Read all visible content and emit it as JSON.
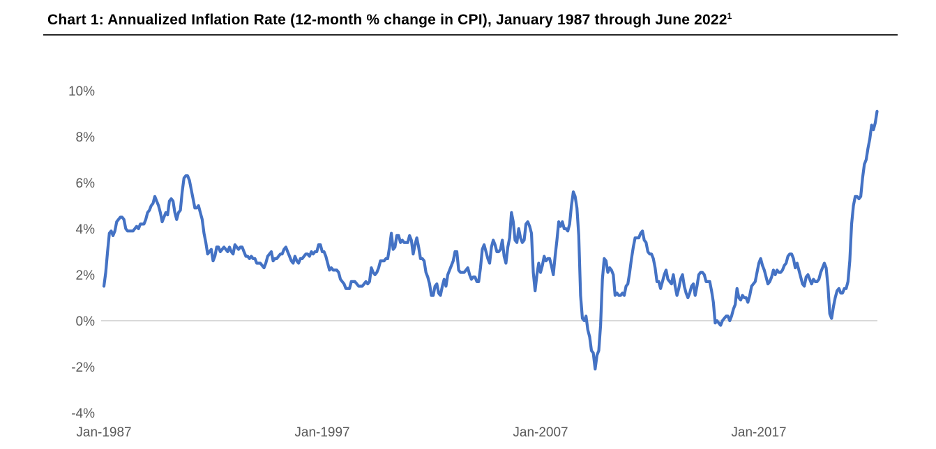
{
  "page": {
    "title": "Chart 1: Annualized Inflation Rate (12-month % change in CPI), January 1987 through June 2022",
    "title_superscript": "1"
  },
  "chart_data": {
    "type": "line",
    "title": "Chart 1: Annualized Inflation Rate (12-month % change in CPI), January 1987 through June 2022",
    "footnote_marker": "1",
    "xlabel": "",
    "ylabel": "",
    "x_start": "Jan-1987",
    "x_end": "Jun-2022",
    "frequency": "monthly",
    "ylim": [
      -4,
      10
    ],
    "grid": "horizontal gridline at 0% only",
    "legend": "none",
    "line_color": "#4472C4",
    "axis_label_color": "#595959",
    "gridline_color": "#D9D9D9",
    "y_ticks": [
      {
        "label": "10%",
        "value": 10
      },
      {
        "label": "8%",
        "value": 8
      },
      {
        "label": "6%",
        "value": 6
      },
      {
        "label": "4%",
        "value": 4
      },
      {
        "label": "2%",
        "value": 2
      },
      {
        "label": "0%",
        "value": 0
      },
      {
        "label": "-2%",
        "value": -2
      },
      {
        "label": "-4%",
        "value": -4
      }
    ],
    "x_ticks": [
      {
        "label": "Jan-1987",
        "month_index": 0
      },
      {
        "label": "Jan-1997",
        "month_index": 120
      },
      {
        "label": "Jan-2007",
        "month_index": 240
      },
      {
        "label": "Jan-2017",
        "month_index": 360
      }
    ],
    "series": [
      {
        "name": "12-month % change in CPI",
        "values": [
          1.5,
          2.1,
          3.0,
          3.8,
          3.9,
          3.7,
          3.9,
          4.3,
          4.4,
          4.5,
          4.5,
          4.4,
          4.0,
          3.9,
          3.9,
          3.9,
          3.9,
          4.0,
          4.1,
          4.0,
          4.2,
          4.2,
          4.2,
          4.4,
          4.7,
          4.8,
          5.0,
          5.1,
          5.4,
          5.2,
          5.0,
          4.7,
          4.3,
          4.5,
          4.7,
          4.6,
          5.2,
          5.3,
          5.2,
          4.7,
          4.4,
          4.7,
          4.8,
          5.6,
          6.2,
          6.3,
          6.3,
          6.1,
          5.7,
          5.3,
          4.9,
          4.9,
          5.0,
          4.7,
          4.4,
          3.8,
          3.4,
          2.9,
          3.0,
          3.1,
          2.6,
          2.8,
          3.2,
          3.2,
          3.0,
          3.1,
          3.2,
          3.1,
          3.0,
          3.2,
          3.0,
          2.9,
          3.3,
          3.2,
          3.1,
          3.2,
          3.2,
          3.0,
          2.8,
          2.8,
          2.7,
          2.8,
          2.7,
          2.7,
          2.5,
          2.5,
          2.5,
          2.4,
          2.3,
          2.5,
          2.8,
          2.9,
          3.0,
          2.6,
          2.7,
          2.7,
          2.8,
          2.9,
          2.9,
          3.1,
          3.2,
          3.0,
          2.8,
          2.6,
          2.5,
          2.8,
          2.6,
          2.5,
          2.7,
          2.7,
          2.8,
          2.9,
          2.9,
          2.8,
          3.0,
          2.9,
          3.0,
          3.0,
          3.3,
          3.3,
          3.0,
          3.0,
          2.8,
          2.5,
          2.2,
          2.3,
          2.2,
          2.2,
          2.2,
          2.1,
          1.8,
          1.7,
          1.6,
          1.4,
          1.4,
          1.4,
          1.7,
          1.7,
          1.7,
          1.6,
          1.5,
          1.5,
          1.5,
          1.6,
          1.7,
          1.6,
          1.7,
          2.3,
          2.1,
          2.0,
          2.1,
          2.3,
          2.6,
          2.6,
          2.6,
          2.7,
          2.7,
          3.2,
          3.8,
          3.1,
          3.2,
          3.7,
          3.7,
          3.4,
          3.5,
          3.4,
          3.4,
          3.4,
          3.7,
          3.5,
          2.9,
          3.3,
          3.6,
          3.2,
          2.7,
          2.7,
          2.6,
          2.1,
          1.9,
          1.6,
          1.1,
          1.1,
          1.5,
          1.6,
          1.2,
          1.1,
          1.5,
          1.8,
          1.5,
          2.0,
          2.2,
          2.4,
          2.6,
          3.0,
          3.0,
          2.2,
          2.1,
          2.1,
          2.1,
          2.2,
          2.3,
          2.0,
          1.8,
          1.9,
          1.9,
          1.7,
          1.7,
          2.3,
          3.1,
          3.3,
          3.0,
          2.7,
          2.5,
          3.2,
          3.5,
          3.3,
          3.0,
          3.0,
          3.1,
          3.5,
          2.8,
          2.5,
          3.2,
          3.6,
          4.7,
          4.3,
          3.5,
          3.4,
          4.0,
          3.6,
          3.4,
          3.5,
          4.2,
          4.3,
          4.1,
          3.8,
          2.1,
          1.3,
          2.0,
          2.5,
          2.1,
          2.4,
          2.8,
          2.6,
          2.7,
          2.7,
          2.4,
          2.0,
          2.8,
          3.5,
          4.3,
          4.1,
          4.3,
          4.0,
          4.0,
          3.9,
          4.2,
          5.0,
          5.6,
          5.4,
          4.9,
          3.7,
          1.1,
          0.1,
          0.0,
          0.2,
          -0.4,
          -0.7,
          -1.3,
          -1.4,
          -2.1,
          -1.5,
          -1.3,
          -0.2,
          1.8,
          2.7,
          2.6,
          2.1,
          2.3,
          2.2,
          2.0,
          1.1,
          1.2,
          1.1,
          1.1,
          1.2,
          1.1,
          1.5,
          1.6,
          2.1,
          2.7,
          3.2,
          3.6,
          3.6,
          3.6,
          3.8,
          3.9,
          3.5,
          3.4,
          3.0,
          2.9,
          2.9,
          2.7,
          2.3,
          1.7,
          1.7,
          1.4,
          1.7,
          2.0,
          2.2,
          1.8,
          1.7,
          1.6,
          2.0,
          1.5,
          1.1,
          1.4,
          1.8,
          2.0,
          1.5,
          1.2,
          1.0,
          1.2,
          1.5,
          1.6,
          1.1,
          1.5,
          2.0,
          2.1,
          2.1,
          2.0,
          1.7,
          1.7,
          1.7,
          1.3,
          0.8,
          -0.1,
          0.0,
          -0.1,
          -0.2,
          0.0,
          0.1,
          0.2,
          0.2,
          0.0,
          0.2,
          0.5,
          0.7,
          1.4,
          1.0,
          0.9,
          1.1,
          1.0,
          1.0,
          0.8,
          1.1,
          1.5,
          1.6,
          1.7,
          2.1,
          2.5,
          2.7,
          2.4,
          2.2,
          1.9,
          1.6,
          1.7,
          1.9,
          2.2,
          2.0,
          2.2,
          2.1,
          2.1,
          2.2,
          2.4,
          2.5,
          2.8,
          2.9,
          2.9,
          2.7,
          2.3,
          2.5,
          2.2,
          1.9,
          1.6,
          1.5,
          1.9,
          2.0,
          1.8,
          1.6,
          1.8,
          1.7,
          1.7,
          1.8,
          2.1,
          2.3,
          2.5,
          2.3,
          1.5,
          0.3,
          0.1,
          0.6,
          1.0,
          1.3,
          1.4,
          1.2,
          1.2,
          1.4,
          1.4,
          1.7,
          2.6,
          4.2,
          5.0,
          5.4,
          5.4,
          5.3,
          5.4,
          6.2,
          6.8,
          7.0,
          7.5,
          7.9,
          8.5,
          8.3,
          8.6,
          9.1
        ]
      }
    ]
  }
}
